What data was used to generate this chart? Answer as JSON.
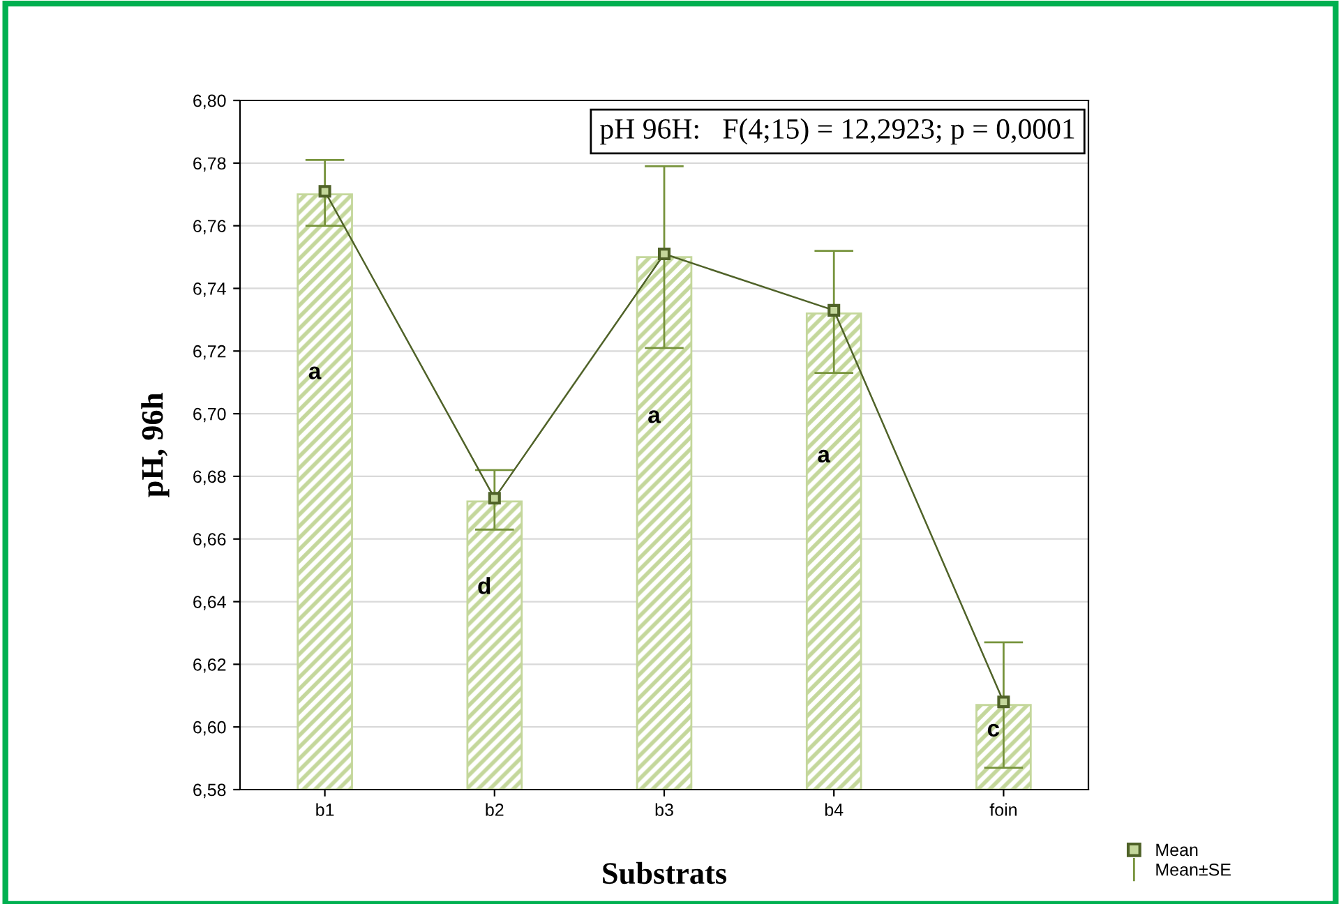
{
  "chart_data": {
    "type": "bar",
    "xlabel": "Substrats",
    "ylabel": "pH, 96h",
    "categories": [
      "b1",
      "b2",
      "b3",
      "b4",
      "foin"
    ],
    "series": [
      {
        "name": "Mean±SE",
        "color": "#c4d79b",
        "values": [
          6.77,
          6.672,
          6.75,
          6.732,
          6.607
        ],
        "errors": [
          [
            6.76,
            6.781
          ],
          [
            6.663,
            6.682
          ],
          [
            6.721,
            6.779
          ],
          [
            6.713,
            6.752
          ],
          [
            6.587,
            6.627
          ]
        ]
      },
      {
        "type": "line",
        "name": "Mean",
        "color": "#4f6228",
        "marker": "square",
        "values": [
          6.771,
          6.673,
          6.751,
          6.733,
          6.608
        ]
      }
    ],
    "ylim": [
      6.58,
      6.8
    ],
    "yticks": [
      {
        "value": 6.58,
        "label": "6,58"
      },
      {
        "value": 6.6,
        "label": "6,60"
      },
      {
        "value": 6.62,
        "label": "6,62"
      },
      {
        "value": 6.64,
        "label": "6,64"
      },
      {
        "value": 6.66,
        "label": "6,66"
      },
      {
        "value": 6.68,
        "label": "6,68"
      },
      {
        "value": 6.7,
        "label": "6,70"
      },
      {
        "value": 6.72,
        "label": "6,72"
      },
      {
        "value": 6.74,
        "label": "6,74"
      },
      {
        "value": 6.76,
        "label": "6,76"
      },
      {
        "value": 6.78,
        "label": "6,78"
      },
      {
        "value": 6.8,
        "label": "6,80"
      }
    ],
    "grid": "y",
    "legend": "bottom right",
    "annotations": [
      "pH 96H:   F(4;15) = 12,2923; p = 0,0001",
      "a",
      "d",
      "a",
      "a",
      "c"
    ]
  }
}
